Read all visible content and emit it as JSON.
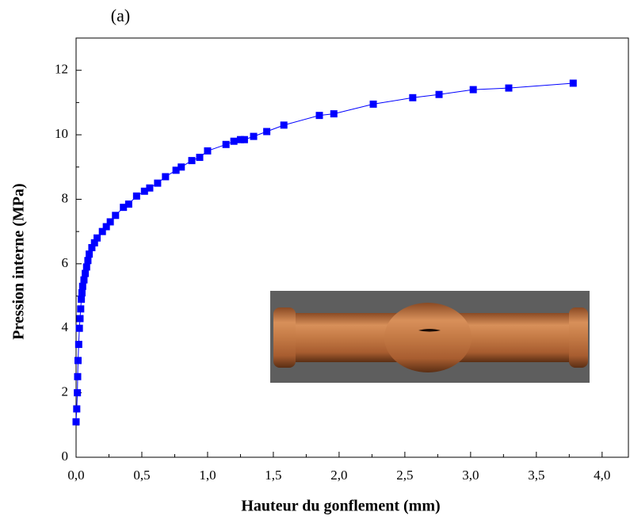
{
  "chart_data": {
    "type": "line",
    "label": "(a)",
    "xlabel": "Hauteur du gonflement (mm)",
    "ylabel": "Pression interne (MPa)",
    "x": [
      0.0,
      0.005,
      0.01,
      0.012,
      0.015,
      0.02,
      0.025,
      0.03,
      0.035,
      0.04,
      0.045,
      0.05,
      0.06,
      0.07,
      0.08,
      0.09,
      0.1,
      0.12,
      0.14,
      0.16,
      0.2,
      0.23,
      0.26,
      0.3,
      0.36,
      0.4,
      0.46,
      0.52,
      0.56,
      0.62,
      0.68,
      0.76,
      0.8,
      0.88,
      0.94,
      1.0,
      1.14,
      1.2,
      1.25,
      1.28,
      1.35,
      1.45,
      1.58,
      1.85,
      1.96,
      2.26,
      2.56,
      2.76,
      3.02,
      3.29,
      3.78
    ],
    "values": [
      1.1,
      1.5,
      2.0,
      2.5,
      3.0,
      3.5,
      4.0,
      4.3,
      4.6,
      4.9,
      5.1,
      5.3,
      5.5,
      5.7,
      5.9,
      6.1,
      6.3,
      6.5,
      6.65,
      6.8,
      7.0,
      7.15,
      7.3,
      7.5,
      7.75,
      7.85,
      8.1,
      8.25,
      8.35,
      8.5,
      8.7,
      8.9,
      9.0,
      9.2,
      9.3,
      9.5,
      9.7,
      9.8,
      9.85,
      9.85,
      9.95,
      10.1,
      10.3,
      10.6,
      10.65,
      10.95,
      11.15,
      11.25,
      11.4,
      11.45,
      11.6
    ],
    "color": "#0000ff",
    "xlim": [
      0,
      4.2
    ],
    "xticks": [
      {
        "value": 0,
        "label": "0,0"
      },
      {
        "value": 0.5,
        "label": "0,5"
      },
      {
        "value": 1,
        "label": "1,0"
      },
      {
        "value": 1.5,
        "label": "1,5"
      },
      {
        "value": 2,
        "label": "2,0"
      },
      {
        "value": 2.5,
        "label": "2,5"
      },
      {
        "value": 3,
        "label": "3,0"
      },
      {
        "value": 3.5,
        "label": "3,5"
      },
      {
        "value": 4,
        "label": "4,0"
      }
    ],
    "ylim": [
      0,
      13
    ],
    "yticks": [
      0,
      2,
      4,
      6,
      8,
      10,
      12
    ]
  }
}
